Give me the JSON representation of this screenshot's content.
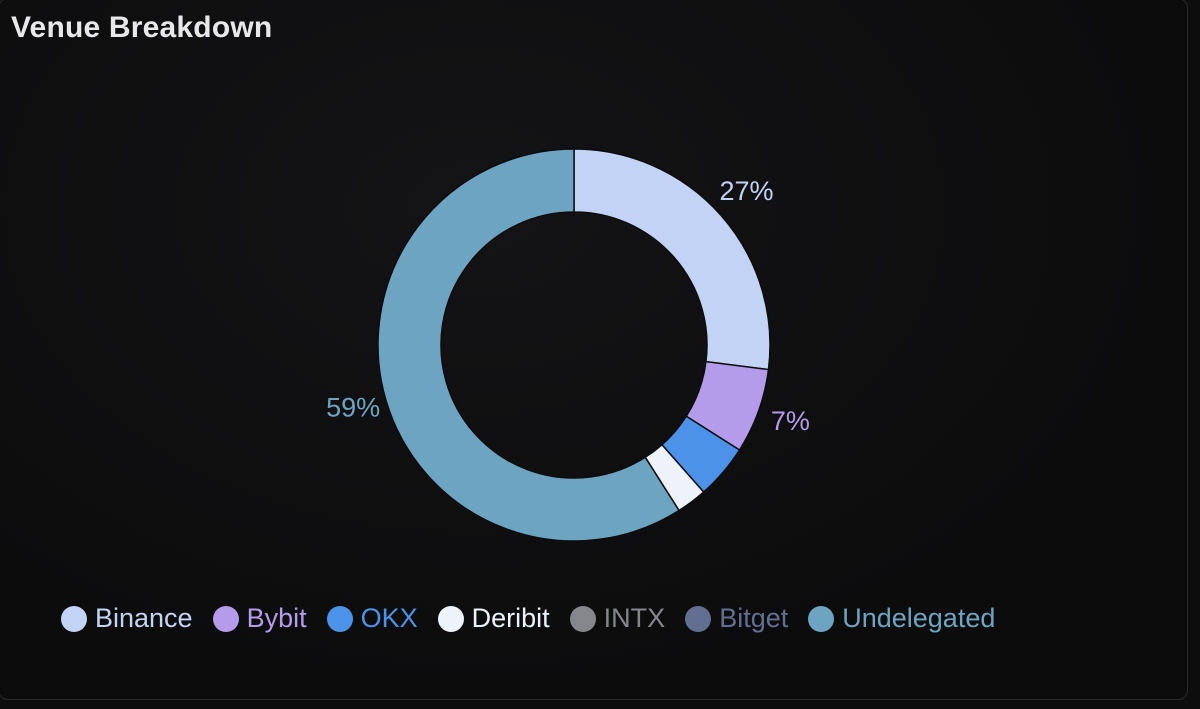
{
  "title": "Venue Breakdown",
  "chart_data": {
    "type": "pie",
    "style": "donut",
    "title": "Venue Breakdown",
    "categories": [
      "Binance",
      "Bybit",
      "OKX",
      "Deribit",
      "INTX",
      "Bitget",
      "Undelegated"
    ],
    "values": [
      27,
      7,
      4.5,
      2.5,
      0,
      0,
      59
    ],
    "labels": [
      "27%",
      "7%",
      "",
      "",
      "",
      "",
      "59%"
    ],
    "colors": [
      "#c3d3f5",
      "#b49ceb",
      "#4c92e8",
      "#eef2fb",
      "#85878c",
      "#636f90",
      "#6ca4c2"
    ],
    "label_colors": [
      "#c3d3f5",
      "#b49ceb",
      "#4c92e8",
      "#eef2fb",
      "#85878c",
      "#636f90",
      "#6ca4c2"
    ],
    "legend": "bottom-left"
  }
}
